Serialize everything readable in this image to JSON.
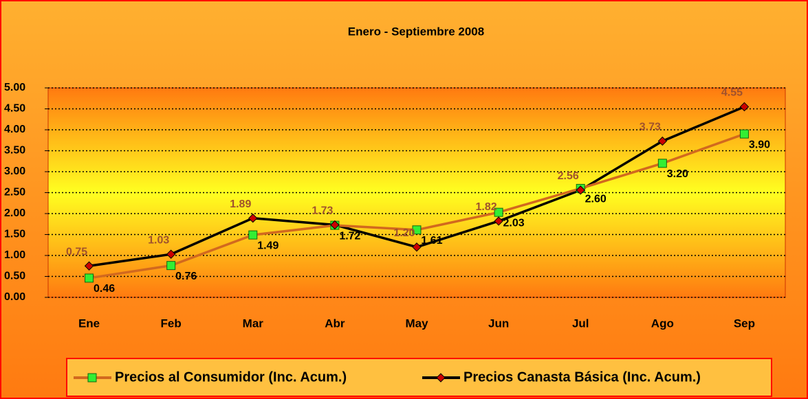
{
  "chart_data": {
    "type": "line",
    "title": "Enero - Septiembre 2008",
    "categories": [
      "Ene",
      "Feb",
      "Mar",
      "Abr",
      "May",
      "Jun",
      "Jul",
      "Ago",
      "Sep"
    ],
    "series": [
      {
        "name": "Precios al Consumidor (Inc. Acum.)",
        "color": "#d2691e",
        "marker": "square",
        "marker_color": "#33ee33",
        "label_color": "#000000",
        "values": [
          0.46,
          0.76,
          1.49,
          1.72,
          1.61,
          2.03,
          2.6,
          3.2,
          3.9
        ],
        "value_labels": [
          "0.46",
          "0.76",
          "1.49",
          "1.72",
          "1.61",
          "2.03",
          "2.60",
          "3.20",
          "3.90"
        ]
      },
      {
        "name": "Precios Canasta Básica (Inc. Acum.)",
        "color": "#000000",
        "marker": "diamond",
        "marker_color": "#cc0000",
        "label_color": "#a0522d",
        "values": [
          0.75,
          1.03,
          1.89,
          1.73,
          1.2,
          1.82,
          2.56,
          3.73,
          4.55
        ],
        "value_labels": [
          "0.75",
          "1.03",
          "1.89",
          "1.73",
          "1.20",
          "1.82",
          "2.56",
          "3.73",
          "4.55"
        ]
      }
    ],
    "ylim": [
      0,
      5
    ],
    "yticks": [
      {
        "value": 0,
        "label": "0.00"
      },
      {
        "value": 0.5,
        "label": "0.50"
      },
      {
        "value": 1,
        "label": "1.00"
      },
      {
        "value": 1.5,
        "label": "1.50"
      },
      {
        "value": 2,
        "label": "2.00"
      },
      {
        "value": 2.5,
        "label": "2.50"
      },
      {
        "value": 3,
        "label": "3.00"
      },
      {
        "value": 3.5,
        "label": "3.50"
      },
      {
        "value": 4,
        "label": "4.00"
      },
      {
        "value": 4.5,
        "label": "4.50"
      },
      {
        "value": 5,
        "label": "5.00"
      }
    ],
    "grid": true,
    "legend": "bottom"
  }
}
